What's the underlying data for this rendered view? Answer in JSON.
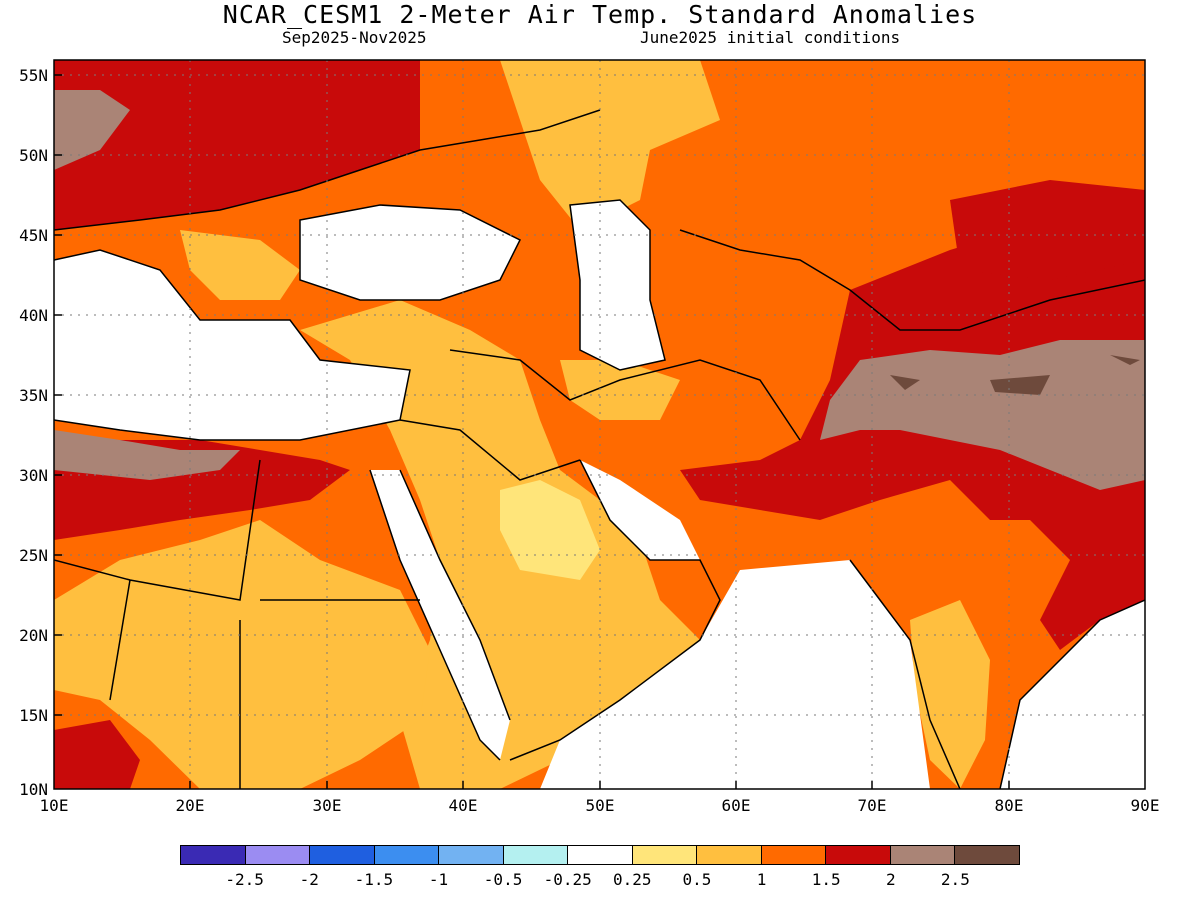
{
  "title": "NCAR_CESM1 2-Meter Air Temp. Standard Anomalies",
  "subtitle_left": "Sep2025-Nov2025",
  "subtitle_right": "June2025 initial conditions",
  "lat_labels": [
    "55N",
    "50N",
    "45N",
    "40N",
    "35N",
    "30N",
    "25N",
    "20N",
    "15N",
    "10N"
  ],
  "lon_labels": [
    "10E",
    "20E",
    "30E",
    "40E",
    "50E",
    "60E",
    "70E",
    "80E",
    "90E"
  ],
  "colorbar": {
    "colors": [
      "#3a2ab4",
      "#9b8cf2",
      "#1f5fe0",
      "#3c8ef0",
      "#72b2f2",
      "#b4f0f0",
      "#ffffff",
      "#ffe57a",
      "#ffbf3f",
      "#ff6a00",
      "#c80a0a",
      "#aa8476",
      "#6e4a3c"
    ],
    "labels": [
      "-2.5",
      "-2",
      "-1.5",
      "-1",
      "-0.5",
      "-0.25",
      "0.25",
      "0.5",
      "1",
      "1.5",
      "2",
      "2.5"
    ]
  },
  "map_data": {
    "variable": "2-Meter Air Temp. Standard Anomalies",
    "model": "NCAR_CESM1",
    "period": "Sep2025-Nov2025",
    "lon_range": [
      10,
      90
    ],
    "lat_range": [
      10,
      56
    ],
    "category_colors": {
      "lt_0.25": "#ffffff",
      "0.25_0.5": "#ffe57a",
      "0.5_1": "#ffbf3f",
      "1_1.5": "#ff6a00",
      "1.5_2": "#c80a0a",
      "2_2.5": "#aa8476",
      "gt_2.5": "#6e4a3c"
    }
  }
}
